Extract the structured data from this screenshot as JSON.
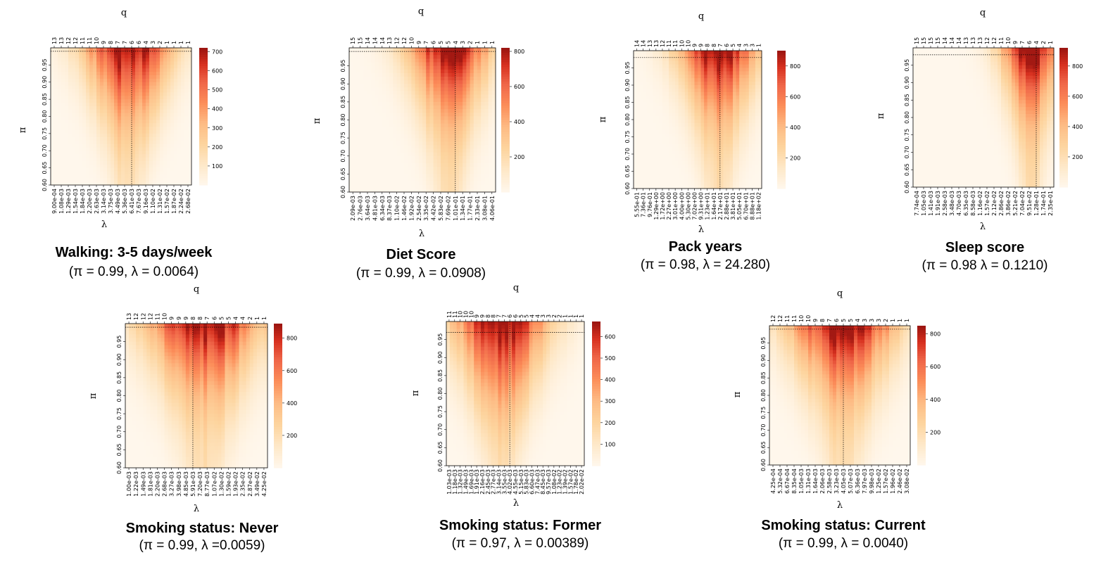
{
  "chart_data": [
    {
      "type": "heatmap",
      "title": "Walking: 3-5 days/week",
      "subtitle": "(π = 0.99, λ = 0.0064)",
      "top_axis_label": "q",
      "xlabel": "λ",
      "ylabel": "π",
      "x_tick_labels": [
        "9.00e-04",
        "1.08e-03",
        "1.29e-03",
        "1.54e-03",
        "1.84e-03",
        "2.20e-03",
        "2.63e-03",
        "3.14e-03",
        "3.75e-03",
        "4.49e-03",
        "5.36e-03",
        "6.41e-03",
        "7.67e-03",
        "9.16e-03",
        "1.10e-02",
        "1.31e-02",
        "1.57e-02",
        "1.87e-02",
        "2.24e-02",
        "2.68e-02"
      ],
      "q_tick_labels": [
        "13",
        "13",
        "12",
        "12",
        "11",
        "11",
        "10",
        "9",
        "8",
        "7",
        "7",
        "6",
        "6",
        "4",
        "3",
        "2",
        "1",
        "1",
        "1",
        "1"
      ],
      "y_ticks": [
        "0.60",
        "0.65",
        "0.70",
        "0.75",
        "0.80",
        "0.85",
        "0.90",
        "0.95"
      ],
      "ylim": [
        0.6,
        1.0
      ],
      "colorbar": {
        "ticks": [
          100,
          200,
          300,
          400,
          500,
          600,
          700
        ],
        "max": 720
      },
      "selected": {
        "pi": 0.99,
        "lambda": 0.0064
      },
      "profile": {
        "center": 0.55,
        "width": 0.2,
        "peak": 1.0,
        "top_bias": 0.25
      }
    },
    {
      "type": "heatmap",
      "title": "Diet Score",
      "subtitle": "(π = 0.99, λ = 0.0908)",
      "top_axis_label": "q",
      "xlabel": "λ",
      "ylabel": "π",
      "x_tick_labels": [
        "2.09e-03",
        "2.76e-03",
        "3.64e-03",
        "4.81e-03",
        "6.34e-03",
        "8.37e-03",
        "1.10e-02",
        "1.46e-02",
        "1.92e-02",
        "2.54e-02",
        "3.35e-02",
        "4.42e-02",
        "5.83e-02",
        "7.69e-02",
        "1.01e-01",
        "1.34e-01",
        "1.77e-01",
        "2.33e-01",
        "3.08e-01",
        "4.06e-01"
      ],
      "q_tick_labels": [
        "15",
        "15",
        "14",
        "14",
        "14",
        "13",
        "12",
        "12",
        "10",
        "9",
        "7",
        "6",
        "5",
        "5",
        "4",
        "3",
        "2",
        "1",
        "1",
        "1"
      ],
      "y_ticks": [
        "0.60",
        "0.65",
        "0.70",
        "0.75",
        "0.80",
        "0.85",
        "0.90",
        "0.95"
      ],
      "ylim": [
        0.6,
        1.0
      ],
      "colorbar": {
        "ticks": [
          200,
          400,
          600,
          800
        ],
        "max": 820
      },
      "selected": {
        "pi": 0.99,
        "lambda": 0.0908
      },
      "profile": {
        "center": 0.68,
        "width": 0.18,
        "peak": 1.0,
        "top_bias": 0.45
      }
    },
    {
      "type": "heatmap",
      "title": "Pack years",
      "subtitle": "(π = 0.98, λ = 24.280)",
      "top_axis_label": "q",
      "xlabel": "λ",
      "ylabel": "π",
      "x_tick_labels": [
        "5.55e-01",
        "7.36e-01",
        "9.76e-01",
        "1.29e+00",
        "1.72e+00",
        "2.27e+00",
        "3.01e+00",
        "4.00e+00",
        "5.30e+00",
        "7.02e+00",
        "9.31e+00",
        "1.23e+01",
        "1.64e+01",
        "2.17e+01",
        "2.88e+01",
        "3.81e+01",
        "5.05e+01",
        "6.70e+01",
        "8.88e+01",
        "1.18e+02"
      ],
      "q_tick_labels": [
        "14",
        "14",
        "13",
        "13",
        "12",
        "11",
        "11",
        "10",
        "10",
        "9",
        "9",
        "8",
        "8",
        "7",
        "6",
        "5",
        "4",
        "3",
        "3",
        "1"
      ],
      "y_ticks": [
        "0.60",
        "0.65",
        "0.70",
        "0.75",
        "0.80",
        "0.85",
        "0.90",
        "0.95"
      ],
      "ylim": [
        0.6,
        1.0
      ],
      "colorbar": {
        "ticks": [
          200,
          400,
          600,
          800
        ],
        "max": 900
      },
      "selected": {
        "pi": 0.98,
        "lambda": 24.28
      },
      "profile": {
        "center": 0.66,
        "width": 0.2,
        "peak": 1.0,
        "top_bias": 0.5
      }
    },
    {
      "type": "heatmap",
      "title": "Sleep score",
      "subtitle": "(π = 0.98 λ = 0.1210)",
      "top_axis_label": "q",
      "xlabel": "λ",
      "ylabel": "π",
      "x_tick_labels": [
        "7.74e-04",
        "1.05e-03",
        "1.41e-03",
        "1.91e-03",
        "2.58e-03",
        "3.48e-03",
        "4.70e-03",
        "6.35e-03",
        "8.58e-03",
        "1.16e-02",
        "1.57e-02",
        "2.12e-02",
        "2.86e-02",
        "3.86e-02",
        "5.21e-02",
        "7.04e-02",
        "9.51e-02",
        "1.28e-01",
        "1.74e-01",
        "2.35e-01"
      ],
      "q_tick_labels": [
        "15",
        "15",
        "15",
        "15",
        "14",
        "14",
        "14",
        "13",
        "13",
        "13",
        "12",
        "12",
        "11",
        "10",
        "9",
        "7",
        "6",
        "4",
        "2",
        "1"
      ],
      "y_ticks": [
        "0.60",
        "0.65",
        "0.70",
        "0.75",
        "0.80",
        "0.85",
        "0.90",
        "0.95"
      ],
      "ylim": [
        0.6,
        1.0
      ],
      "colorbar": {
        "ticks": [
          200,
          400,
          600,
          800
        ],
        "max": 920
      },
      "selected": {
        "pi": 0.98,
        "lambda": 0.121
      },
      "profile": {
        "center": 0.84,
        "width": 0.14,
        "peak": 1.0,
        "top_bias": 0.55
      }
    },
    {
      "type": "heatmap",
      "title": "Smoking status: Never",
      "subtitle": "(π = 0.99, λ =0.0059)",
      "top_axis_label": "q",
      "xlabel": "λ",
      "ylabel": "π",
      "x_tick_labels": [
        "1.00e-03",
        "1.22e-03",
        "1.49e-03",
        "1.81e-03",
        "2.20e-03",
        "2.68e-03",
        "3.27e-03",
        "3.98e-03",
        "4.85e-03",
        "5.91e-03",
        "7.20e-03",
        "8.77e-03",
        "1.07e-02",
        "1.30e-02",
        "1.59e-02",
        "1.93e-02",
        "2.35e-02",
        "2.87e-02",
        "3.49e-02",
        "4.25e-02"
      ],
      "q_tick_labels": [
        "13",
        "12",
        "12",
        "12",
        "11",
        "10",
        "9",
        "9",
        "9",
        "8",
        "8",
        "7",
        "6",
        "5",
        "5",
        "4",
        "4",
        "2",
        "1",
        "1"
      ],
      "y_ticks": [
        "0.60",
        "0.65",
        "0.70",
        "0.75",
        "0.80",
        "0.85",
        "0.90",
        "0.95"
      ],
      "ylim": [
        0.6,
        1.0
      ],
      "colorbar": {
        "ticks": [
          200,
          400,
          600,
          800
        ],
        "max": 890
      },
      "selected": {
        "pi": 0.99,
        "lambda": 0.0059
      },
      "profile": {
        "center": 0.55,
        "width": 0.26,
        "peak": 1.0,
        "top_bias": 0.45
      }
    },
    {
      "type": "heatmap",
      "title": "Smoking status: Former",
      "subtitle": "(π = 0.97, λ = 0.00389)",
      "top_axis_label": "q",
      "xlabel": "λ",
      "ylabel": "π",
      "x_tick_labels": [
        "1.03e-03",
        "1.18e-03",
        "1.32e-03",
        "1.49e-03",
        "1.69e-03",
        "1.91e-03",
        "2.16e-03",
        "2.45e-03",
        "2.77e-03",
        "3.14e-03",
        "3.55e-03",
        "4.02e-03",
        "4.55e-03",
        "5.15e-03",
        "5.83e-03",
        "6.60e-03",
        "7.47e-03",
        "8.45e-03",
        "9.57e-03",
        "1.08e-02",
        "1.23e-02",
        "1.39e-02",
        "1.57e-02",
        "1.78e-02",
        "2.02e-02"
      ],
      "q_tick_labels": [
        "11",
        "11",
        "10",
        "10",
        "10",
        "9",
        "9",
        "8",
        "8",
        "7",
        "7",
        "6",
        "6",
        "5",
        "5",
        "4",
        "4",
        "3",
        "3",
        "2",
        "2",
        "1",
        "1",
        "1",
        "1"
      ],
      "y_ticks": [
        "0.60",
        "0.65",
        "0.70",
        "0.75",
        "0.80",
        "0.85",
        "0.90",
        "0.95"
      ],
      "ylim": [
        0.6,
        1.0
      ],
      "colorbar": {
        "ticks": [
          100,
          200,
          300,
          400,
          500,
          600
        ],
        "max": 670
      },
      "selected": {
        "pi": 0.97,
        "lambda": 0.00389
      },
      "profile": {
        "center": 0.4,
        "width": 0.22,
        "peak": 1.0,
        "top_bias": 0.1
      }
    },
    {
      "type": "heatmap",
      "title": "Smoking status: Current",
      "subtitle": "(π = 0.99, λ = 0.0040)",
      "top_axis_label": "q",
      "xlabel": "λ",
      "ylabel": "π",
      "x_tick_labels": [
        "4.25e-04",
        "5.32e-04",
        "6.67e-04",
        "8.35e-04",
        "1.05e-03",
        "1.31e-03",
        "1.64e-03",
        "2.06e-03",
        "2.58e-03",
        "3.23e-03",
        "4.05e-03",
        "5.07e-03",
        "6.36e-03",
        "7.97e-03",
        "9.98e-03",
        "1.25e-02",
        "1.57e-02",
        "1.96e-02",
        "2.46e-02",
        "3.08e-02"
      ],
      "q_tick_labels": [
        "12",
        "12",
        "11",
        "11",
        "10",
        "10",
        "9",
        "8",
        "7",
        "6",
        "5",
        "5",
        "4",
        "3",
        "3",
        "3",
        "2",
        "1",
        "1",
        "1"
      ],
      "y_ticks": [
        "0.60",
        "0.65",
        "0.70",
        "0.75",
        "0.80",
        "0.85",
        "0.90",
        "0.95"
      ],
      "ylim": [
        0.6,
        1.0
      ],
      "colorbar": {
        "ticks": [
          200,
          400,
          600,
          800
        ],
        "max": 850
      },
      "selected": {
        "pi": 0.99,
        "lambda": 0.004
      },
      "profile": {
        "center": 0.52,
        "width": 0.24,
        "peak": 1.0,
        "top_bias": 0.45
      }
    }
  ]
}
